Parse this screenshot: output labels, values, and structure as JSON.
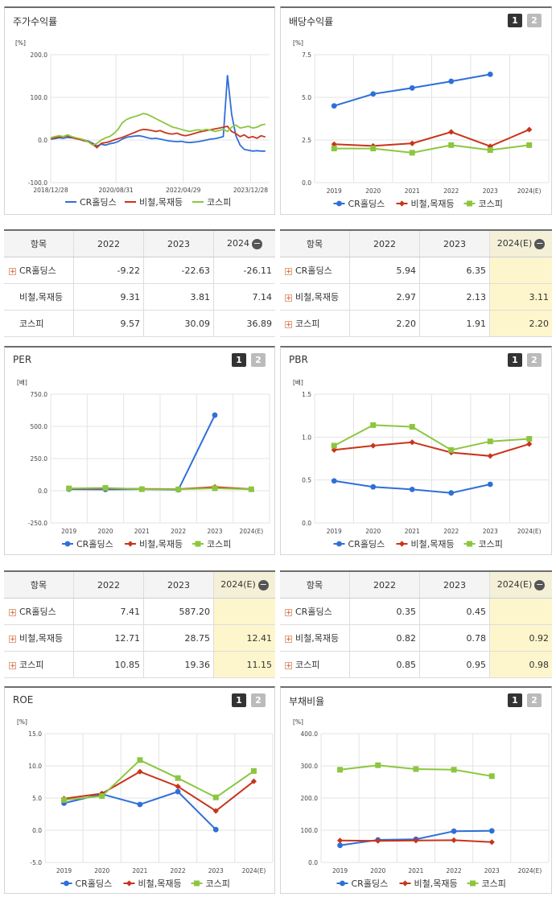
{
  "colors": {
    "cr": "#2f6fd8",
    "steel": "#c9341b",
    "kospi": "#8cc63f"
  },
  "legend": [
    "CR홀딩스",
    "비철,목재등",
    "코스피"
  ],
  "toggle": {
    "one": "1",
    "two": "2"
  },
  "minus_symbol": "−",
  "plus_symbol": "+",
  "chart_data": [
    {
      "id": "stock_return",
      "type": "line",
      "title": "주가수익률",
      "unit": "[%]",
      "yticks": [
        "200.0",
        "100.0",
        "0.0",
        "-100.0"
      ],
      "ylim": [
        -100,
        200
      ],
      "xticks": [
        "2018/12/28",
        "2020/08/31",
        "2022/04/29",
        "2023/12/28"
      ],
      "x_range": [
        0,
        104
      ],
      "xtick_pos": [
        0,
        31,
        63,
        95
      ],
      "series": [
        {
          "name": "CR홀딩스",
          "values": [
            [
              0,
              2
            ],
            [
              2,
              3
            ],
            [
              4,
              5
            ],
            [
              6,
              4
            ],
            [
              8,
              6
            ],
            [
              10,
              5
            ],
            [
              12,
              3
            ],
            [
              14,
              2
            ],
            [
              16,
              0
            ],
            [
              18,
              -3
            ],
            [
              20,
              -8
            ],
            [
              22,
              -14
            ],
            [
              24,
              -10
            ],
            [
              26,
              -12
            ],
            [
              28,
              -9
            ],
            [
              30,
              -7
            ],
            [
              32,
              -4
            ],
            [
              34,
              2
            ],
            [
              36,
              6
            ],
            [
              38,
              8
            ],
            [
              40,
              9
            ],
            [
              42,
              10
            ],
            [
              44,
              8
            ],
            [
              46,
              5
            ],
            [
              48,
              3
            ],
            [
              50,
              4
            ],
            [
              52,
              2
            ],
            [
              54,
              0
            ],
            [
              56,
              -2
            ],
            [
              58,
              -3
            ],
            [
              60,
              -4
            ],
            [
              62,
              -3
            ],
            [
              64,
              -5
            ],
            [
              66,
              -6
            ],
            [
              68,
              -5
            ],
            [
              70,
              -4
            ],
            [
              72,
              -2
            ],
            [
              74,
              0
            ],
            [
              76,
              2
            ],
            [
              78,
              3
            ],
            [
              80,
              5
            ],
            [
              82,
              8
            ],
            [
              84,
              152
            ],
            [
              86,
              60
            ],
            [
              88,
              10
            ],
            [
              90,
              -12
            ],
            [
              92,
              -22
            ],
            [
              94,
              -24
            ],
            [
              96,
              -26
            ],
            [
              98,
              -25
            ],
            [
              100,
              -26
            ],
            [
              102,
              -26
            ]
          ]
        },
        {
          "name": "비철,목재등",
          "values": [
            [
              0,
              3
            ],
            [
              2,
              5
            ],
            [
              4,
              7
            ],
            [
              6,
              8
            ],
            [
              8,
              10
            ],
            [
              10,
              6
            ],
            [
              12,
              3
            ],
            [
              14,
              1
            ],
            [
              16,
              -2
            ],
            [
              18,
              -4
            ],
            [
              20,
              -10
            ],
            [
              22,
              -18
            ],
            [
              24,
              -8
            ],
            [
              26,
              -6
            ],
            [
              28,
              -4
            ],
            [
              30,
              0
            ],
            [
              32,
              3
            ],
            [
              34,
              6
            ],
            [
              36,
              10
            ],
            [
              38,
              14
            ],
            [
              40,
              18
            ],
            [
              42,
              22
            ],
            [
              44,
              25
            ],
            [
              46,
              24
            ],
            [
              48,
              22
            ],
            [
              50,
              20
            ],
            [
              52,
              22
            ],
            [
              54,
              18
            ],
            [
              56,
              15
            ],
            [
              58,
              14
            ],
            [
              60,
              16
            ],
            [
              62,
              12
            ],
            [
              64,
              10
            ],
            [
              66,
              12
            ],
            [
              68,
              15
            ],
            [
              70,
              18
            ],
            [
              72,
              20
            ],
            [
              74,
              22
            ],
            [
              76,
              24
            ],
            [
              78,
              26
            ],
            [
              80,
              28
            ],
            [
              82,
              30
            ],
            [
              84,
              32
            ],
            [
              86,
              20
            ],
            [
              88,
              15
            ],
            [
              90,
              8
            ],
            [
              92,
              12
            ],
            [
              94,
              5
            ],
            [
              96,
              8
            ],
            [
              98,
              4
            ],
            [
              100,
              10
            ],
            [
              102,
              7
            ]
          ]
        },
        {
          "name": "코스피",
          "values": [
            [
              0,
              5
            ],
            [
              2,
              8
            ],
            [
              4,
              10
            ],
            [
              6,
              8
            ],
            [
              8,
              12
            ],
            [
              10,
              8
            ],
            [
              12,
              5
            ],
            [
              14,
              3
            ],
            [
              16,
              0
            ],
            [
              18,
              -5
            ],
            [
              20,
              -12
            ],
            [
              22,
              -8
            ],
            [
              24,
              0
            ],
            [
              26,
              5
            ],
            [
              28,
              8
            ],
            [
              30,
              15
            ],
            [
              32,
              25
            ],
            [
              34,
              40
            ],
            [
              36,
              48
            ],
            [
              38,
              52
            ],
            [
              40,
              55
            ],
            [
              42,
              58
            ],
            [
              44,
              62
            ],
            [
              46,
              60
            ],
            [
              48,
              55
            ],
            [
              50,
              50
            ],
            [
              52,
              45
            ],
            [
              54,
              40
            ],
            [
              56,
              35
            ],
            [
              58,
              30
            ],
            [
              60,
              28
            ],
            [
              62,
              25
            ],
            [
              64,
              22
            ],
            [
              66,
              20
            ],
            [
              68,
              22
            ],
            [
              70,
              24
            ],
            [
              72,
              22
            ],
            [
              74,
              25
            ],
            [
              76,
              23
            ],
            [
              78,
              20
            ],
            [
              80,
              22
            ],
            [
              82,
              25
            ],
            [
              84,
              20
            ],
            [
              86,
              30
            ],
            [
              88,
              35
            ],
            [
              90,
              28
            ],
            [
              92,
              30
            ],
            [
              94,
              32
            ],
            [
              96,
              28
            ],
            [
              98,
              30
            ],
            [
              100,
              35
            ],
            [
              102,
              37
            ]
          ]
        }
      ]
    },
    {
      "id": "dividend",
      "type": "line",
      "title": "배당수익률",
      "unit": "[%]",
      "yticks": [
        "7.5",
        "5.0",
        "2.5",
        "0.0"
      ],
      "ylim": [
        0,
        7.5
      ],
      "categories": [
        "2019",
        "2020",
        "2021",
        "2022",
        "2023",
        "2024(E)"
      ],
      "series": [
        {
          "name": "CR홀딩스",
          "values": [
            4.5,
            5.2,
            5.55,
            5.94,
            6.35,
            null
          ]
        },
        {
          "name": "비철,목재등",
          "values": [
            2.25,
            2.15,
            2.3,
            2.97,
            2.13,
            3.11
          ]
        },
        {
          "name": "코스피",
          "values": [
            2.0,
            2.0,
            1.75,
            2.2,
            1.91,
            2.2
          ]
        }
      ]
    },
    {
      "id": "per",
      "type": "line",
      "title": "PER",
      "unit": "[배]",
      "yticks": [
        "750.0",
        "500.0",
        "250.0",
        "0.0",
        "-250.0"
      ],
      "ylim": [
        -250,
        750
      ],
      "categories": [
        "2019",
        "2020",
        "2021",
        "2022",
        "2023",
        "2024(E)"
      ],
      "series": [
        {
          "name": "CR홀딩스",
          "values": [
            12,
            10,
            12,
            7.41,
            587.2,
            null
          ]
        },
        {
          "name": "비철,목재등",
          "values": [
            16,
            18,
            14,
            12.71,
            28.75,
            12.41
          ]
        },
        {
          "name": "코스피",
          "values": [
            18,
            22,
            12,
            10.85,
            19.36,
            11.15
          ]
        }
      ]
    },
    {
      "id": "pbr",
      "type": "line",
      "title": "PBR",
      "unit": "[배]",
      "yticks": [
        "1.5",
        "1.0",
        "0.5",
        "0.0"
      ],
      "ylim": [
        0,
        1.5
      ],
      "categories": [
        "2019",
        "2020",
        "2021",
        "2022",
        "2023",
        "2024(E)"
      ],
      "series": [
        {
          "name": "CR홀딩스",
          "values": [
            0.49,
            0.42,
            0.39,
            0.35,
            0.45,
            null
          ]
        },
        {
          "name": "비철,목재등",
          "values": [
            0.85,
            0.9,
            0.94,
            0.82,
            0.78,
            0.92
          ]
        },
        {
          "name": "코스피",
          "values": [
            0.9,
            1.14,
            1.12,
            0.85,
            0.95,
            0.98
          ]
        }
      ]
    },
    {
      "id": "roe",
      "type": "line",
      "title": "ROE",
      "unit": "[%]",
      "yticks": [
        "15.0",
        "10.0",
        "5.0",
        "0.0",
        "-5.0"
      ],
      "ylim": [
        -5,
        15
      ],
      "categories": [
        "2019",
        "2020",
        "2021",
        "2022",
        "2023",
        "2024(E)"
      ],
      "series": [
        {
          "name": "CR홀딩스",
          "values": [
            4.2,
            5.6,
            4.0,
            6.0,
            0.1,
            null
          ]
        },
        {
          "name": "비철,목재등",
          "values": [
            4.9,
            5.7,
            9.1,
            6.8,
            3.0,
            7.6
          ]
        },
        {
          "name": "코스피",
          "values": [
            4.7,
            5.3,
            10.9,
            8.1,
            5.1,
            9.2
          ]
        }
      ]
    },
    {
      "id": "debt",
      "type": "line",
      "title": "부채비율",
      "unit": "[%]",
      "yticks": [
        "400.0",
        "300.0",
        "200.0",
        "100.0",
        "0.0"
      ],
      "ylim": [
        0,
        400
      ],
      "categories": [
        "2019",
        "2020",
        "2021",
        "2022",
        "2023",
        "2024(E)"
      ],
      "series": [
        {
          "name": "CR홀딩스",
          "values": [
            53,
            70,
            72,
            97,
            98,
            null
          ]
        },
        {
          "name": "비철,목재등",
          "values": [
            68,
            67,
            68,
            69,
            63,
            null
          ]
        },
        {
          "name": "코스피",
          "values": [
            288,
            302,
            290,
            288,
            268,
            null
          ]
        }
      ]
    }
  ],
  "tables": {
    "stock": {
      "headers": [
        "항목",
        "2022",
        "2023",
        "2024"
      ],
      "rows": [
        {
          "label": "CR홀딩스",
          "plus": true,
          "v": [
            "-9.22",
            "-22.63",
            "-26.11"
          ]
        },
        {
          "label": "비철,목재등",
          "plus": false,
          "v": [
            "9.31",
            "3.81",
            "7.14"
          ]
        },
        {
          "label": "코스피",
          "plus": false,
          "v": [
            "9.57",
            "30.09",
            "36.89"
          ]
        }
      ]
    },
    "dividend": {
      "headers": [
        "항목",
        "2022",
        "2023",
        "2024(E)"
      ],
      "rows": [
        {
          "label": "CR홀딩스",
          "plus": true,
          "v": [
            "5.94",
            "6.35",
            ""
          ]
        },
        {
          "label": "비철,목재등",
          "plus": true,
          "v": [
            "2.97",
            "2.13",
            "3.11"
          ]
        },
        {
          "label": "코스피",
          "plus": true,
          "v": [
            "2.20",
            "1.91",
            "2.20"
          ]
        }
      ]
    },
    "per": {
      "headers": [
        "항목",
        "2022",
        "2023",
        "2024(E)"
      ],
      "rows": [
        {
          "label": "CR홀딩스",
          "plus": true,
          "v": [
            "7.41",
            "587.20",
            ""
          ]
        },
        {
          "label": "비철,목재등",
          "plus": true,
          "v": [
            "12.71",
            "28.75",
            "12.41"
          ]
        },
        {
          "label": "코스피",
          "plus": true,
          "v": [
            "10.85",
            "19.36",
            "11.15"
          ]
        }
      ]
    },
    "pbr": {
      "headers": [
        "항목",
        "2022",
        "2023",
        "2024(E)"
      ],
      "rows": [
        {
          "label": "CR홀딩스",
          "plus": true,
          "v": [
            "0.35",
            "0.45",
            ""
          ]
        },
        {
          "label": "비철,목재등",
          "plus": true,
          "v": [
            "0.82",
            "0.78",
            "0.92"
          ]
        },
        {
          "label": "코스피",
          "plus": true,
          "v": [
            "0.85",
            "0.95",
            "0.98"
          ]
        }
      ]
    }
  }
}
